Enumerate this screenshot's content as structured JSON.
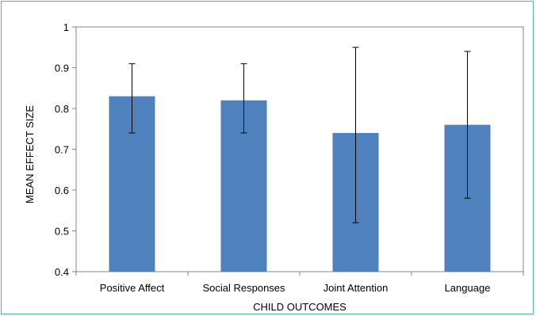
{
  "chart_data": {
    "type": "bar",
    "title": "",
    "xlabel": "CHILD OUTCOMES",
    "ylabel": "MEAN EFFECT SIZE",
    "categories": [
      "Positive Affect",
      "Social Responses",
      "Joint Attention",
      "Language"
    ],
    "series": [
      {
        "values": [
          0.83,
          0.82,
          0.74,
          0.76
        ],
        "error_low": [
          0.74,
          0.74,
          0.52,
          0.58
        ],
        "error_high": [
          0.91,
          0.91,
          0.95,
          0.94
        ]
      }
    ],
    "ylim": [
      0.4,
      1.0
    ],
    "yticks": [
      0.4,
      0.5,
      0.6,
      0.7,
      0.8,
      0.9,
      1
    ],
    "ytick_labels": [
      "0.4",
      "0.5",
      "0.6",
      "0.7",
      "0.8",
      "0.9",
      "1"
    ],
    "grid": false,
    "legend": "none",
    "colors": {
      "bar": "#4f81bd",
      "error_bar": "#000000",
      "frame_border": "#48b7a6"
    }
  }
}
